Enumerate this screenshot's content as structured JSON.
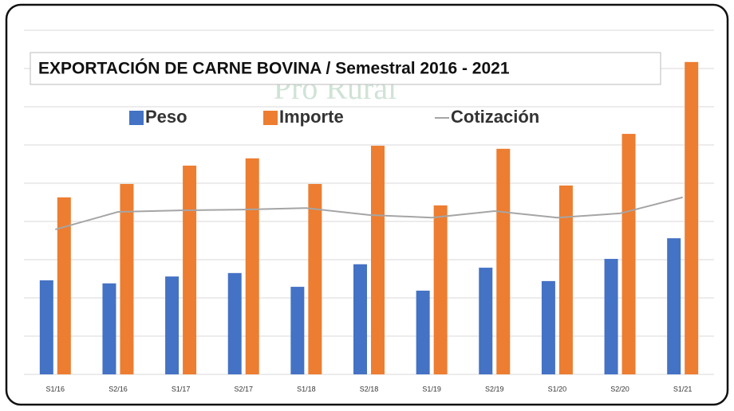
{
  "chart_data": {
    "type": "bar",
    "title": "EXPORTACIÓN DE CARNE BOVINA  / Semestral 2016 - 2021",
    "watermark": "Pro Rural",
    "categories": [
      "S1/16",
      "S2/16",
      "S1/17",
      "S2/17",
      "S1/18",
      "S2/18",
      "S1/19",
      "S2/19",
      "S1/20",
      "S2/20",
      "S1/21"
    ],
    "series": [
      {
        "name": "Peso",
        "color": "#4472c4",
        "type": "bar",
        "values": [
          2.46,
          2.38,
          2.56,
          2.65,
          2.29,
          2.88,
          2.19,
          2.79,
          2.44,
          3.02,
          3.56
        ]
      },
      {
        "name": "Importe",
        "color": "#ed7d31",
        "type": "bar",
        "values": [
          4.63,
          4.98,
          5.46,
          5.65,
          4.98,
          5.98,
          4.42,
          5.9,
          4.94,
          6.29,
          8.17
        ]
      },
      {
        "name": "Cotización",
        "color": "#a5a5a5",
        "type": "line",
        "values": [
          3.79,
          4.25,
          4.29,
          4.31,
          4.35,
          4.17,
          4.1,
          4.27,
          4.1,
          4.21,
          4.63
        ]
      }
    ],
    "ylim": [
      0,
      9
    ],
    "yticks": [
      0,
      1,
      2,
      3,
      4,
      5,
      6,
      7,
      8,
      9
    ],
    "grid": true
  }
}
